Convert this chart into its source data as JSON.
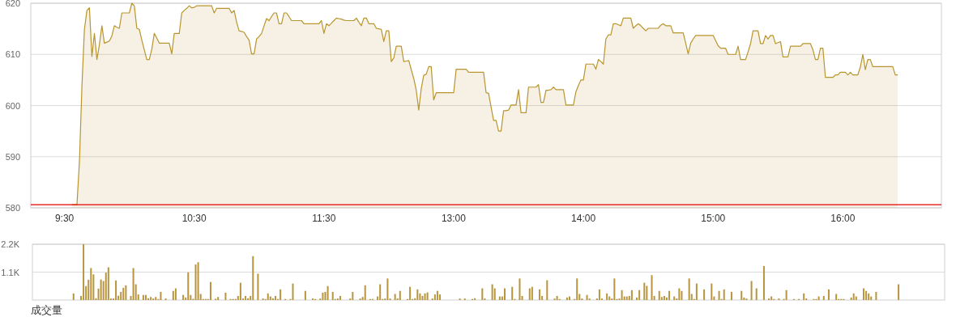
{
  "chart_data": [
    {
      "type": "area",
      "ylim": [
        580,
        620
      ],
      "yticks": [
        580,
        590,
        600,
        610,
        620
      ],
      "grid": "y",
      "ref_lines": [
        {
          "axis": "y",
          "value": 580.6,
          "color": "#e60000"
        }
      ],
      "categories": [
        null,
        null,
        null,
        null,
        null,
        null,
        null,
        null,
        null,
        null,
        null,
        null,
        null,
        "9:30",
        null,
        null,
        null,
        null,
        null,
        null,
        null,
        null,
        null,
        null,
        null,
        null,
        null,
        null,
        null,
        null,
        null,
        null,
        null,
        null,
        null,
        null,
        null,
        null,
        null,
        null,
        null,
        null,
        null,
        null,
        null,
        null,
        null,
        null,
        null,
        null,
        null,
        null,
        null,
        null,
        null,
        null,
        null,
        null,
        null,
        null,
        null,
        null,
        null,
        null,
        null,
        "10:30",
        null,
        null,
        null,
        null,
        null,
        null,
        null,
        null,
        null,
        null,
        null,
        null,
        null,
        null,
        null,
        null,
        null,
        null,
        null,
        null,
        null,
        null,
        null,
        null,
        null,
        null,
        null,
        null,
        null,
        null,
        null,
        null,
        null,
        null,
        null,
        null,
        null,
        null,
        null,
        null,
        null,
        null,
        null,
        null,
        null,
        null,
        null,
        null,
        null,
        null,
        null,
        "11:30",
        null,
        null,
        null,
        null,
        null,
        null,
        null,
        null,
        null,
        null,
        null,
        null,
        null,
        null,
        null,
        null,
        null,
        null,
        null,
        null,
        null,
        null,
        null,
        null,
        null,
        null,
        null,
        null,
        null,
        null,
        null,
        null,
        null,
        null,
        null,
        null,
        null,
        null,
        null,
        null,
        null,
        null,
        null,
        null,
        null,
        null,
        null,
        null,
        null,
        null,
        null,
        "13:00",
        null,
        null,
        null,
        null,
        null,
        null,
        null,
        null,
        null,
        null,
        null,
        null,
        null,
        null,
        null,
        null,
        null,
        null,
        null,
        null,
        null,
        null,
        null,
        null,
        null,
        null,
        null,
        null,
        null,
        null,
        null,
        null,
        null,
        null,
        null,
        null,
        null,
        null,
        null,
        null,
        null,
        null,
        null,
        null,
        null,
        null,
        null,
        null,
        null,
        null,
        null,
        "14:00",
        null,
        null,
        null,
        null,
        null,
        null,
        null,
        null,
        null,
        null,
        null,
        null,
        null,
        null,
        null,
        null,
        null,
        null,
        null,
        null,
        null,
        null,
        null,
        null,
        null,
        null,
        null,
        null,
        null,
        null,
        null,
        null,
        null,
        null,
        null,
        null,
        null,
        null,
        null,
        null,
        null,
        null,
        null,
        null,
        null,
        null,
        null,
        null,
        null,
        null,
        null,
        "15:00",
        null,
        null,
        null,
        null,
        null,
        null,
        null,
        null,
        null,
        null,
        null,
        null,
        null,
        null,
        null,
        null,
        null,
        null,
        null,
        null,
        null,
        null,
        null,
        null,
        null,
        null,
        null,
        null,
        null,
        null,
        null,
        null,
        null,
        null,
        null,
        null,
        null,
        null,
        null,
        null,
        null,
        null,
        null,
        null,
        null,
        null,
        null,
        null,
        null,
        null,
        null,
        "16:00",
        null,
        null,
        null,
        null,
        null,
        null,
        null,
        null,
        null,
        null,
        null,
        null,
        null,
        null,
        null,
        null,
        null,
        null,
        null,
        null,
        null,
        null,
        null,
        null,
        null,
        null,
        null,
        null,
        null,
        null,
        null,
        null,
        null,
        null,
        null,
        null,
        null,
        null,
        null
      ],
      "series": [
        {
          "color": "#b8952e",
          "values": [
            null,
            null,
            null,
            null,
            null,
            null,
            null,
            null,
            null,
            null,
            null,
            null,
            null,
            null,
            null,
            null,
            580.6,
            580.6,
            580.6,
            589.0,
            603.8,
            614.9,
            618.6,
            619.1,
            609.6,
            614.1,
            609.0,
            611.9,
            615.6,
            612.2,
            612.4,
            612.6,
            613.6,
            615.6,
            615.3,
            615.1,
            618.1,
            618.1,
            618.1,
            618.1,
            620.0,
            619.5,
            615.1,
            614.9,
            612.8,
            610.9,
            609.0,
            609.0,
            611.0,
            614.1,
            613.2,
            612.2,
            612.2,
            612.2,
            612.2,
            612.2,
            610.1,
            614.1,
            614.1,
            614.1,
            618.1,
            618.6,
            619.0,
            619.5,
            619.1,
            619.2,
            619.5,
            619.5,
            619.5,
            619.5,
            619.5,
            619.5,
            619.5,
            618.1,
            619.0,
            619.0,
            619.0,
            619.0,
            619.0,
            619.0,
            618.1,
            618.6,
            616.3,
            614.6,
            614.5,
            614.3,
            613.5,
            612.8,
            610.1,
            610.1,
            613.0,
            613.5,
            614.1,
            615.6,
            617.0,
            616.6,
            617.4,
            618.1,
            618.1,
            616.0,
            616.0,
            618.1,
            618.1,
            617.4,
            616.6,
            616.6,
            616.6,
            616.6,
            616.6,
            616.0,
            616.0,
            616.0,
            616.0,
            616.0,
            616.0,
            616.0,
            616.6,
            614.1,
            616.0,
            615.6,
            616.1,
            616.6,
            617.1,
            617.0,
            616.9,
            616.7,
            616.6,
            616.6,
            616.6,
            616.6,
            617.1,
            616.3,
            615.6,
            617.1,
            617.1,
            616.0,
            616.0,
            616.0,
            615.1,
            615.0,
            614.9,
            612.5,
            614.6,
            614.6,
            608.6,
            609.3,
            611.6,
            611.6,
            611.6,
            608.6,
            608.7,
            608.8,
            607.0,
            605.3,
            603.0,
            599.1,
            603.3,
            605.9,
            606.1,
            607.6,
            607.6,
            601.1,
            602.5,
            602.5,
            602.5,
            602.5,
            602.5,
            602.5,
            602.5,
            602.5,
            607.1,
            607.1,
            607.1,
            607.1,
            607.1,
            606.5,
            606.5,
            606.5,
            606.5,
            606.5,
            606.5,
            606.5,
            602.5,
            602.4,
            599.7,
            597.1,
            597.1,
            595.0,
            595.0,
            599.0,
            599.0,
            599.1,
            600.1,
            600.1,
            600.1,
            603.1,
            598.6,
            598.6,
            598.6,
            603.6,
            603.6,
            603.6,
            603.6,
            604.1,
            600.6,
            600.6,
            603.0,
            603.0,
            603.1,
            603.6,
            603.1,
            603.1,
            603.1,
            603.1,
            600.1,
            600.1,
            600.1,
            600.1,
            602.7,
            603.9,
            605.0,
            605.0,
            608.1,
            608.1,
            608.1,
            608.1,
            607.1,
            609.0,
            608.6,
            608.1,
            613.0,
            613.8,
            613.8,
            616.0,
            616.0,
            615.8,
            615.6,
            617.1,
            617.1,
            617.1,
            617.1,
            615.1,
            615.6,
            616.0,
            615.6,
            615.1,
            614.6,
            615.1,
            615.1,
            615.1,
            615.1,
            615.1,
            615.7,
            616.0,
            615.6,
            615.6,
            615.6,
            614.2,
            614.2,
            614.2,
            614.2,
            614.2,
            612.2,
            610.1,
            612.2,
            613.0,
            613.7,
            613.7,
            613.7,
            613.7,
            613.7,
            613.7,
            613.7,
            613.7,
            612.7,
            611.7,
            611.2,
            611.2,
            611.2,
            610.0,
            610.0,
            610.0,
            610.0,
            611.6,
            609.0,
            609.0,
            609.0,
            610.5,
            612.1,
            614.6,
            614.6,
            614.6,
            612.1,
            612.1,
            613.7,
            613.0,
            613.7,
            613.7,
            612.1,
            612.3,
            612.5,
            609.5,
            609.5,
            609.5,
            611.6,
            611.6,
            611.6,
            611.6,
            611.6,
            612.1,
            612.1,
            612.1,
            612.1,
            610.9,
            609.0,
            609.0,
            611.2,
            611.2,
            605.5,
            605.5,
            605.5,
            605.5,
            606.0,
            606.0,
            606.5,
            606.5,
            606.5,
            606.0,
            606.5,
            606.0,
            606.0,
            606.0,
            607.5,
            610.0,
            607.0,
            609.0,
            609.0,
            607.6,
            607.6,
            607.6,
            607.6,
            607.6,
            607.6,
            607.6,
            607.6,
            607.6,
            606.0,
            606.0,
            null,
            null,
            null,
            null,
            null,
            null,
            null,
            null,
            null,
            null,
            null,
            null,
            null,
            null,
            null,
            null,
            null
          ]
        }
      ]
    },
    {
      "type": "bar",
      "ylim": [
        0,
        2200
      ],
      "yticks": [
        {
          "value": 1100,
          "label": "1.1K"
        },
        {
          "value": 2200,
          "label": "2.2K"
        }
      ],
      "tick_labels": "y",
      "grid": "y",
      "xlabel": "成交量",
      "categories": [
        null,
        null,
        null,
        null,
        null,
        null,
        null,
        null,
        null,
        null,
        null,
        null,
        null,
        null,
        null,
        null,
        null,
        null,
        null,
        null,
        null,
        null,
        null,
        null,
        null,
        null,
        null,
        null,
        null,
        null,
        null,
        null,
        null,
        null,
        null,
        null,
        null,
        null,
        null,
        null,
        null,
        null,
        null,
        null,
        null,
        null,
        null,
        null,
        null,
        null,
        null,
        null,
        null,
        null,
        null,
        null,
        null,
        null,
        null,
        null,
        null,
        null,
        null,
        null,
        null,
        null,
        null,
        null,
        null,
        null,
        null,
        null,
        null,
        null,
        null,
        null,
        null,
        null,
        null,
        null,
        null,
        null,
        null,
        null,
        null,
        null,
        null,
        null,
        null,
        null,
        null,
        null,
        null,
        null,
        null,
        null,
        null,
        null,
        null,
        null,
        null,
        null,
        null,
        null,
        null,
        null,
        null,
        null,
        null,
        null,
        null,
        null,
        null,
        null,
        null,
        null,
        null,
        null,
        null,
        null,
        null,
        null,
        null,
        null,
        null,
        null,
        null,
        null,
        null,
        null,
        null,
        null,
        null,
        null,
        null,
        null,
        null,
        null,
        null,
        null,
        null,
        null,
        null,
        null,
        null,
        null,
        null,
        null,
        null,
        null,
        null,
        null,
        null,
        null,
        null,
        null,
        null,
        null,
        null,
        null,
        null,
        null,
        null,
        null,
        null,
        null,
        null,
        null,
        null,
        null,
        null,
        null,
        null,
        null,
        null,
        null,
        null,
        null,
        null,
        null,
        null,
        null,
        null,
        null,
        null,
        null,
        null,
        null,
        null,
        null,
        null,
        null,
        null,
        null,
        null,
        null,
        null,
        null,
        null,
        null,
        null,
        null,
        null,
        null,
        null,
        null,
        null,
        null,
        null,
        null,
        null,
        null,
        null,
        null,
        null,
        null,
        null,
        null,
        null,
        null,
        null,
        null,
        null,
        null,
        null,
        null,
        null,
        null,
        null,
        null,
        null,
        null,
        null,
        null,
        null,
        null,
        null,
        null,
        null,
        null,
        null,
        null,
        null,
        null,
        null,
        null,
        null,
        null,
        null,
        null,
        null,
        null,
        null,
        null,
        null,
        null,
        null,
        null,
        null,
        null,
        null,
        null,
        null,
        null,
        null,
        null,
        null,
        null,
        null,
        null,
        null,
        null,
        null,
        null,
        null,
        null,
        null,
        null,
        null,
        null,
        null,
        null,
        null,
        null,
        null,
        null,
        null,
        null,
        null,
        null,
        null,
        null,
        null,
        null,
        null,
        null,
        null,
        null,
        null,
        null,
        null,
        null,
        null,
        null,
        null,
        null,
        null,
        null,
        null,
        null,
        null,
        null,
        null,
        null,
        null,
        null,
        null,
        null,
        null,
        null,
        null,
        null,
        null,
        null,
        null,
        null,
        null,
        null,
        null,
        null,
        null,
        null,
        null,
        null,
        null,
        null,
        null,
        null,
        null,
        null,
        null,
        null,
        null,
        null,
        null,
        null,
        null,
        null,
        null,
        null,
        null,
        null,
        null,
        null,
        null,
        null,
        null,
        null,
        null,
        null,
        null,
        null,
        null,
        null,
        null,
        null
      ],
      "series": [
        {
          "color": "#b8953f",
          "values": [
            null,
            null,
            null,
            null,
            null,
            null,
            null,
            null,
            null,
            null,
            null,
            null,
            null,
            null,
            null,
            null,
            260,
            null,
            null,
            160,
            2200,
            550,
            800,
            1260,
            1010,
            70,
            450,
            810,
            750,
            1080,
            1290,
            60,
            60,
            770,
            170,
            320,
            480,
            580,
            null,
            160,
            1260,
            620,
            220,
            null,
            200,
            200,
            70,
            120,
            60,
            120,
            40,
            320,
            null,
            60,
            null,
            null,
            360,
            460,
            null,
            null,
            200,
            100,
            1090,
            200,
            50,
            1400,
            1490,
            240,
            40,
            40,
            40,
            710,
            null,
            50,
            120,
            null,
            null,
            290,
            null,
            40,
            40,
            40,
            160,
            680,
            60,
            160,
            70,
            160,
            1730,
            null,
            1040,
            null,
            60,
            40,
            260,
            140,
            70,
            160,
            40,
            420,
            null,
            40,
            null,
            40,
            650,
            null,
            null,
            null,
            null,
            360,
            null,
            null,
            60,
            40,
            null,
            60,
            290,
            320,
            550,
            null,
            320,
            40,
            60,
            160,
            null,
            null,
            null,
            60,
            320,
            null,
            null,
            60,
            120,
            580,
            null,
            40,
            40,
            null,
            140,
            620,
            40,
            60,
            850,
            60,
            null,
            240,
            60,
            360,
            null,
            null,
            40,
            520,
            40,
            70,
            420,
            260,
            160,
            260,
            300,
            null,
            60,
            220,
            360,
            220,
            null,
            null,
            null,
            null,
            null,
            null,
            null,
            60,
            null,
            60,
            null,
            null,
            40,
            70,
            null,
            null,
            460,
            60,
            null,
            null,
            620,
            460,
            null,
            140,
            140,
            460,
            null,
            null,
            520,
            40,
            null,
            850,
            160,
            null,
            null,
            460,
            520,
            null,
            null,
            420,
            160,
            null,
            780,
            null,
            null,
            60,
            160,
            40,
            null,
            null,
            100,
            140,
            null,
            40,
            850,
            240,
            60,
            null,
            200,
            60,
            null,
            null,
            60,
            420,
            60,
            null,
            260,
            140,
            60,
            850,
            40,
            60,
            390,
            140,
            140,
            160,
            390,
            null,
            100,
            390,
            null,
            680,
            560,
            null,
            980,
            160,
            null,
            360,
            120,
            160,
            100,
            360,
            null,
            140,
            60,
            460,
            360,
            null,
            null,
            850,
            240,
            40,
            650,
            null,
            null,
            420,
            null,
            null,
            650,
            140,
            null,
            360,
            40,
            420,
            null,
            null,
            320,
            null,
            null,
            null,
            360,
            100,
            60,
            null,
            750,
            null,
            460,
            null,
            null,
            1340,
            null,
            60,
            140,
            40,
            null,
            60,
            null,
            40,
            390,
            null,
            null,
            40,
            null,
            40,
            null,
            260,
            60,
            null,
            null,
            40,
            40,
            140,
            null,
            160,
            null,
            420,
            null,
            null,
            240,
            40,
            40,
            40,
            null,
            null,
            100,
            260,
            140,
            null,
            null,
            460,
            360,
            260,
            140,
            null,
            320,
            null,
            null,
            null,
            null,
            null,
            null,
            null,
            null,
            620,
            null,
            null,
            null,
            null,
            null,
            null,
            null,
            null,
            null,
            null,
            null,
            null,
            null,
            null,
            null,
            null,
            null,
            null
          ]
        }
      ]
    }
  ]
}
